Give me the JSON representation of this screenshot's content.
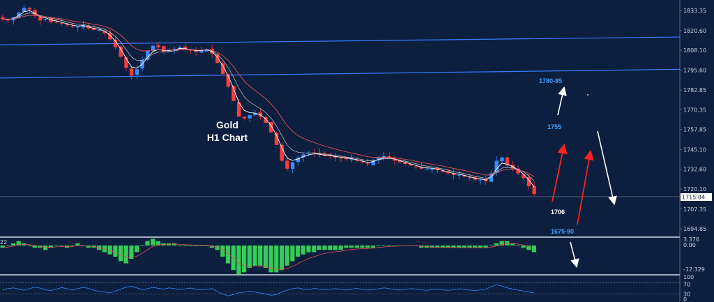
{
  "chart_title": [
    "Gold",
    "H1 Chart"
  ],
  "chart_data": [
    {
      "type": "candlestick",
      "panel": "price",
      "y_ticks": [
        "1833.35",
        "1820.60",
        "1808.10",
        "1795.60",
        "1782.85",
        "1770.35",
        "1757.85",
        "1745.10",
        "1732.60",
        "1720.10",
        "1707.35",
        "1694.85"
      ],
      "ylim": [
        1690,
        1838
      ],
      "current_price": "1715.84",
      "resistance_lines": [
        {
          "name": "upper-trend",
          "from": 1811.5,
          "to": 1816.5
        },
        {
          "name": "lower-trend",
          "from": 1790.5,
          "to": 1796
        }
      ],
      "price_path": [
        1828,
        1827,
        1829,
        1832,
        1835,
        1834,
        1830,
        1827,
        1828,
        1826,
        1826,
        1825,
        1824,
        1823,
        1823,
        1824,
        1822,
        1821,
        1821,
        1819,
        1815,
        1810,
        1804,
        1797,
        1792,
        1796,
        1802,
        1808,
        1811,
        1810,
        1807,
        1808,
        1809,
        1810,
        1809,
        1808,
        1807,
        1808,
        1809,
        1806,
        1800,
        1793,
        1785,
        1776,
        1766,
        1765,
        1767,
        1768,
        1766,
        1762,
        1756,
        1748,
        1738,
        1733,
        1737,
        1740,
        1742,
        1743,
        1743,
        1742,
        1741,
        1741,
        1740,
        1740,
        1739,
        1739,
        1738,
        1737,
        1736,
        1738,
        1740,
        1741,
        1740,
        1738,
        1737,
        1736,
        1735,
        1734,
        1733,
        1733,
        1733,
        1732,
        1731,
        1730,
        1729,
        1729,
        1728,
        1727,
        1726,
        1726,
        1725,
        1730,
        1738,
        1740,
        1735,
        1733,
        1730,
        1727,
        1722,
        1717
      ],
      "annotations": {
        "targets_up": [
          "1780-85",
          "1755"
        ],
        "support": "1706",
        "target_down": "1675-90"
      }
    },
    {
      "type": "histogram",
      "panel": "macd",
      "y_ticks": [
        "3.376",
        "0.00",
        "-12.329"
      ],
      "overflow_label": "22",
      "values": [
        -1,
        0,
        1,
        2,
        1,
        0,
        -1,
        -1,
        -2,
        -1,
        0,
        0,
        -1,
        0,
        1,
        0,
        -1,
        -1,
        -2,
        -3,
        -4,
        -5,
        -7,
        -8,
        -6,
        -3,
        0,
        2,
        3,
        2,
        1,
        1,
        1,
        0,
        0,
        0,
        0,
        0,
        0,
        -1,
        -2,
        -5,
        -8,
        -11,
        -13,
        -12,
        -10,
        -9,
        -9,
        -10,
        -12,
        -12,
        -11,
        -9,
        -7,
        -5,
        -4,
        -3,
        -3,
        -2,
        -2,
        -2,
        -2,
        -2,
        -1,
        -1,
        -1,
        -1,
        -1,
        -1,
        0,
        0,
        0,
        0,
        0,
        0,
        0,
        0,
        -1,
        -1,
        -1,
        -1,
        -1,
        -1,
        -1,
        -1,
        -1,
        -1,
        -1,
        -1,
        -1,
        0,
        1,
        2,
        2,
        1,
        0,
        -1,
        -2,
        -3
      ]
    },
    {
      "type": "line",
      "panel": "oscillator",
      "y_ticks": [
        "100",
        "70",
        "30",
        "0"
      ],
      "ylim": [
        0,
        100
      ],
      "values": [
        48,
        52,
        55,
        50,
        45,
        52,
        58,
        54,
        47,
        44,
        50,
        56,
        51,
        46,
        52,
        57,
        53,
        45,
        41,
        38,
        35,
        42,
        50,
        58,
        62,
        55,
        48,
        52,
        57,
        53,
        50,
        55,
        52,
        48,
        51,
        54,
        50,
        47,
        49,
        52,
        40,
        30,
        22,
        28,
        35,
        38,
        42,
        38,
        34,
        30,
        25,
        28,
        38,
        46,
        52,
        55,
        50,
        48,
        53,
        50,
        47,
        50,
        52,
        49,
        46,
        50,
        53,
        49,
        46,
        48,
        51,
        55,
        52,
        48,
        46,
        49,
        52,
        50,
        47,
        45,
        48,
        50,
        47,
        45,
        48,
        51,
        49,
        46,
        44,
        47,
        50,
        60,
        68,
        62,
        55,
        50,
        46,
        42,
        38,
        34
      ]
    }
  ],
  "colors": {
    "background": "#0c1f3f",
    "bull": "#3b8cff",
    "bear": "#ff3b3b",
    "ma_fast": "#ffffff",
    "ma_slow": "#e05050",
    "trend_line": "#3b7bff",
    "histogram": "#33cc55",
    "osc_line": "#2f7be8",
    "arrow_up_red": "#ff2020",
    "arrow_white": "#ffffff"
  }
}
